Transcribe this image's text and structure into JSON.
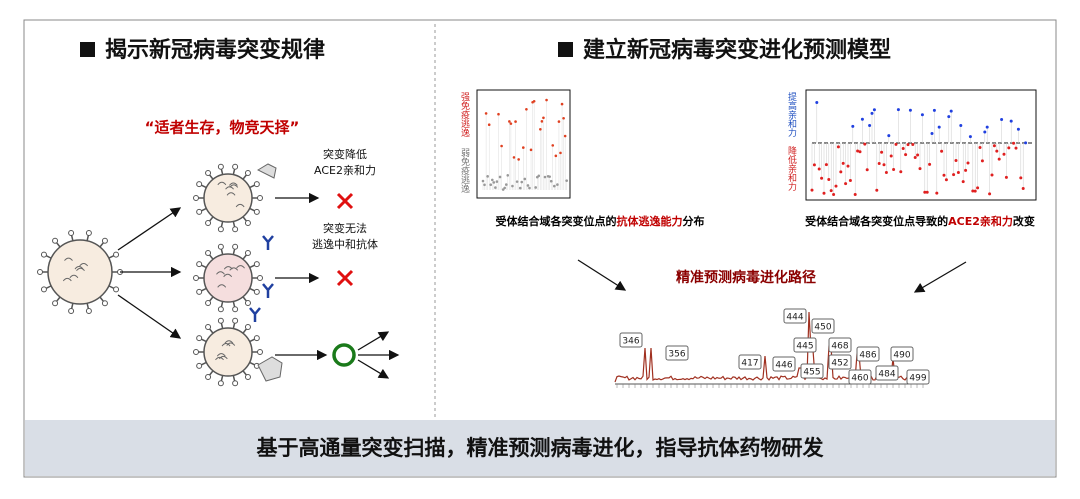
{
  "left": {
    "title": "揭示新冠病毒突变规律",
    "quote": "“适者生存，物竞天择”",
    "outcomes": [
      {
        "lines": [
          "突变降低",
          "ACE2亲和力"
        ]
      },
      {
        "lines": [
          "突变无法",
          "逃逸中和抗体"
        ]
      }
    ]
  },
  "right": {
    "title": "建立新冠病毒突变进化预测模型",
    "escape_chart": {
      "legend_high": "强免疫逃逸",
      "legend_low": "弱免疫逃逸",
      "caption": [
        "受体结合域各突变位点的",
        "抗体逃逸能力",
        "分布"
      ]
    },
    "affinity_chart": {
      "legend_high": "提高亲和力",
      "legend_low": "降低亲和力",
      "caption": [
        "受体结合域各突变位点导致的",
        "ACE2亲和力",
        "改变"
      ]
    },
    "prediction_label": "精准预测病毒进化路径",
    "peak_labels": [
      "346",
      "356",
      "417",
      "444",
      "445",
      "446",
      "450",
      "452",
      "455",
      "460",
      "468",
      "484",
      "486",
      "490",
      "499"
    ]
  },
  "footer": "基于高通量突变扫描，精准预测病毒进化，指导抗体药物研发"
}
